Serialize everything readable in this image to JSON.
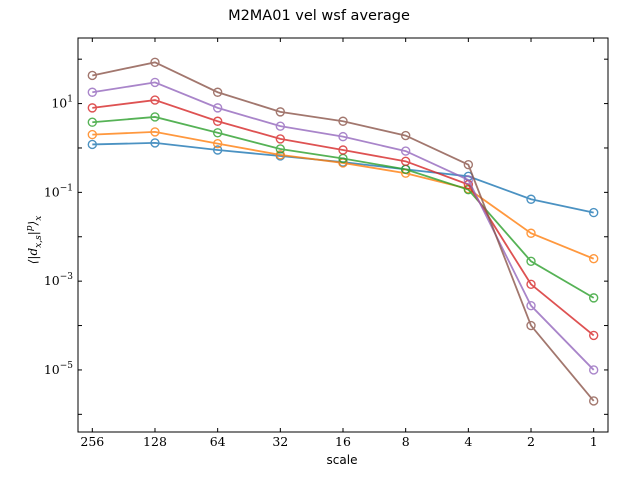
{
  "chart_data": {
    "type": "line",
    "title": "M2MA01 vel wsf average",
    "xlabel": "scale",
    "ylabel": "⟨|d_{x,s}|^p⟩_x",
    "yscale": "log",
    "ylim": [
      4e-07,
      300
    ],
    "x": [
      256,
      128,
      64,
      32,
      16,
      8,
      4,
      2,
      1
    ],
    "x_direction": "decreasing",
    "x_tick_labels": [
      "256",
      "128",
      "64",
      "32",
      "16",
      "8",
      "4",
      "2",
      "1"
    ],
    "y_ticks": [
      {
        "base": "10",
        "exp": "1",
        "value": 10
      },
      {
        "base": "10",
        "exp": "−1",
        "value": 0.1
      },
      {
        "base": "10",
        "exp": "−3",
        "value": 0.001
      },
      {
        "base": "10",
        "exp": "−5",
        "value": 1e-05
      }
    ],
    "grid": false,
    "legend": false,
    "marker": "open-circle",
    "series": [
      {
        "color": "#1f77b4",
        "values": [
          1.2,
          1.3,
          0.9,
          0.66,
          0.48,
          0.33,
          0.23,
          0.07,
          0.035
        ]
      },
      {
        "color": "#ff7f0e",
        "values": [
          2.0,
          2.3,
          1.25,
          0.7,
          0.46,
          0.27,
          0.12,
          0.012,
          0.0032
        ]
      },
      {
        "color": "#2ca02c",
        "values": [
          3.8,
          5.0,
          2.2,
          0.95,
          0.58,
          0.33,
          0.115,
          0.0028,
          0.00042
        ]
      },
      {
        "color": "#d62728",
        "values": [
          8.0,
          12.0,
          4.0,
          1.6,
          0.9,
          0.5,
          0.15,
          0.00085,
          6e-05
        ]
      },
      {
        "color": "#9467bd",
        "values": [
          18.0,
          30.0,
          8.0,
          3.1,
          1.8,
          0.85,
          0.19,
          0.00028,
          1e-05
        ]
      },
      {
        "color": "#8c564b",
        "values": [
          43.0,
          85.0,
          18.0,
          6.5,
          4.0,
          1.9,
          0.42,
          0.0001,
          2e-06
        ]
      }
    ]
  }
}
